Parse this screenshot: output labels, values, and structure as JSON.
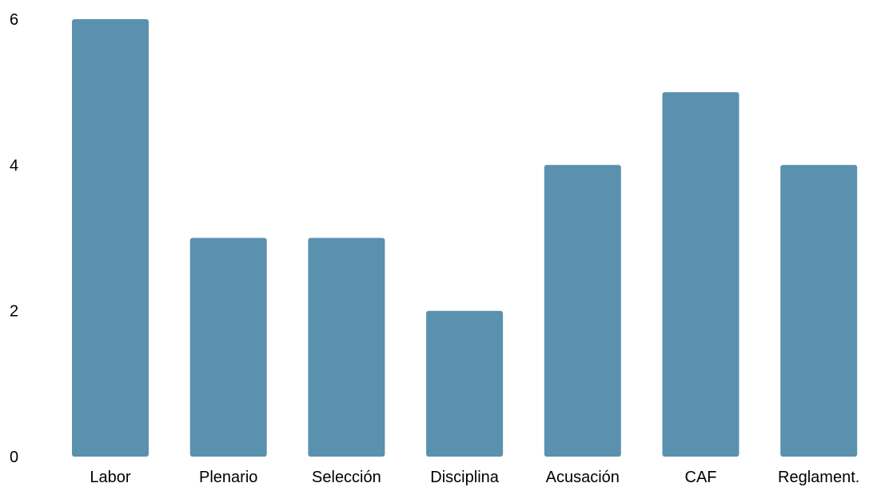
{
  "chart_data": {
    "type": "bar",
    "title": "",
    "xlabel": "",
    "ylabel": "",
    "categories": [
      "Labor",
      "Plenario",
      "Selección",
      "Disciplina",
      "Acusación",
      "CAF",
      "Reglament."
    ],
    "values": [
      6,
      3,
      3,
      2,
      4,
      5,
      4
    ],
    "ylim": [
      0,
      6
    ],
    "yticks": [
      0,
      2,
      4,
      6
    ],
    "grid": false,
    "legend": "none",
    "bar_color": "#5a91af"
  }
}
